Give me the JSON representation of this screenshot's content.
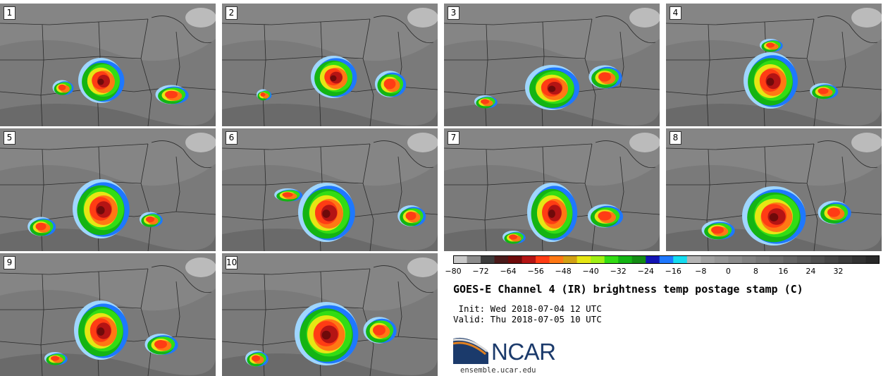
{
  "panels": [
    {
      "label": "1"
    },
    {
      "label": "2"
    },
    {
      "label": "3"
    },
    {
      "label": "4"
    },
    {
      "label": "5"
    },
    {
      "label": "6"
    },
    {
      "label": "7"
    },
    {
      "label": "8"
    },
    {
      "label": "9"
    },
    {
      "label": "10"
    }
  ],
  "colorbar": {
    "colors": [
      "#c8c8c8",
      "#8c8c8c",
      "#3c3c3c",
      "#4a1a1a",
      "#6e0a0a",
      "#b41414",
      "#ff3c14",
      "#ff7814",
      "#d2a014",
      "#e6e614",
      "#a0f014",
      "#32dc14",
      "#14b414",
      "#148c14",
      "#1414b4",
      "#1e78ff",
      "#14dcf0",
      "#b4b4b4",
      "#a0a0a0",
      "#969696",
      "#8c8c8c",
      "#828282",
      "#787878",
      "#6e6e6e",
      "#646464",
      "#5a5a5a",
      "#505050",
      "#464646",
      "#3c3c3c",
      "#323232",
      "#282828"
    ],
    "ticks": [
      "−80",
      "−72",
      "−64",
      "−56",
      "−48",
      "−40",
      "−32",
      "−24",
      "−16",
      "−8",
      "0",
      "8",
      "16",
      "24",
      "32"
    ]
  },
  "title": "GOES-E Channel 4 (IR) brightness temp postage stamp (C)",
  "init_line": " Init: Wed 2018-07-04 12 UTC",
  "valid_line": "Valid: Thu 2018-07-05 10 UTC",
  "logo": {
    "name": "NCAR",
    "url": "ensemble.ucar.edu"
  }
}
